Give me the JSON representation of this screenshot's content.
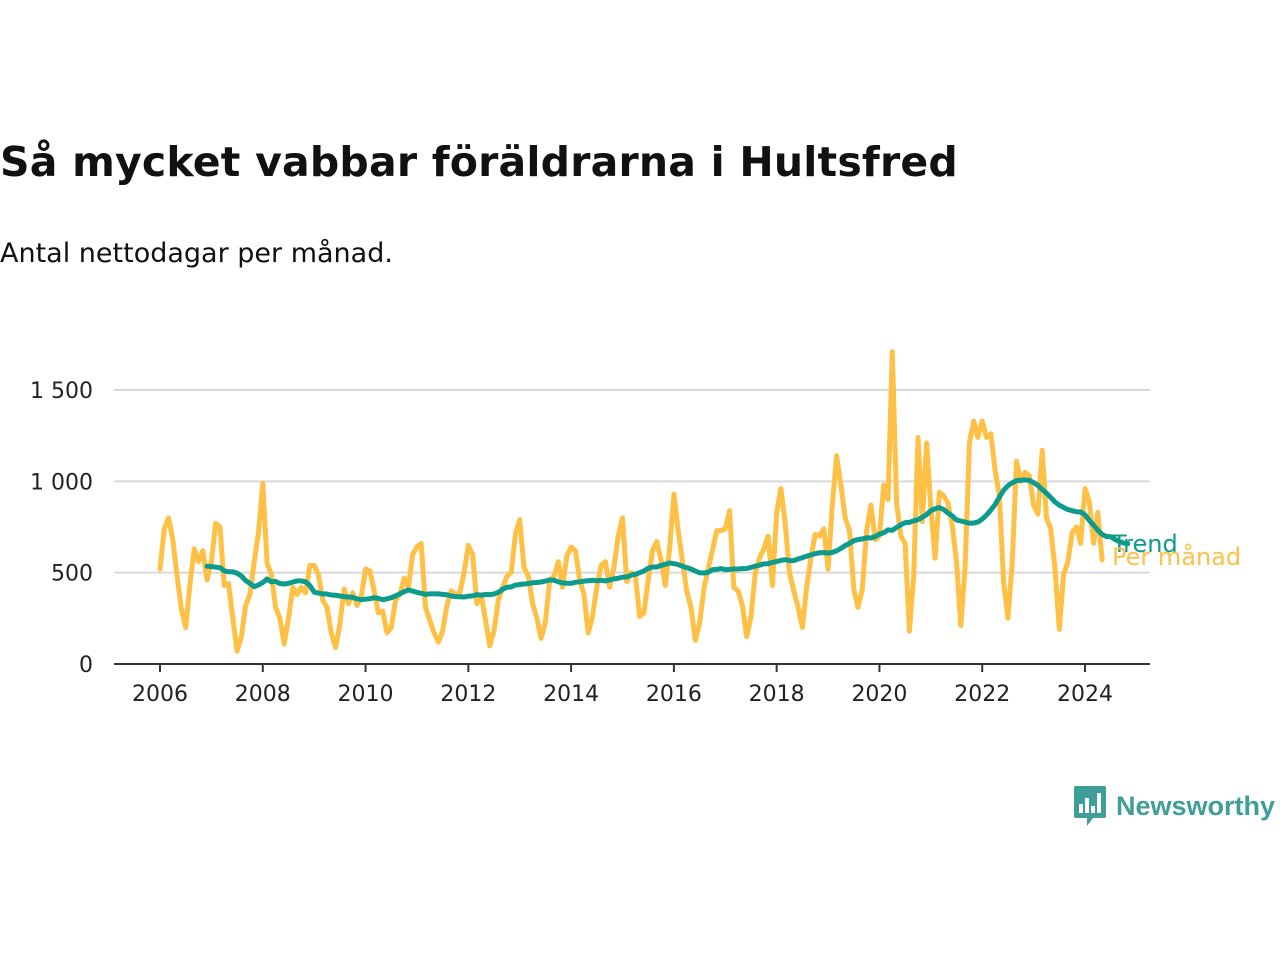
{
  "title": "Så mycket vabbar föräldrarna i Hultsfred",
  "subtitle": "Antal nettodagar per månad.",
  "brand": {
    "name": "Newsworthy",
    "logo_icon": "bar-chart-speech-bubble-icon"
  },
  "colors": {
    "monthly": "#fec045",
    "trend": "#0d9b8d",
    "grid": "#d9d9d9",
    "axis": "#333333",
    "brand": "#3f9e97"
  },
  "chart_data": {
    "type": "line",
    "x_ticks": [
      "2006",
      "2008",
      "2010",
      "2012",
      "2014",
      "2016",
      "2018",
      "2020",
      "2022",
      "2024"
    ],
    "y_ticks": [
      "0",
      "500",
      "1 000",
      "1 500"
    ],
    "ylim": [
      0,
      1700
    ],
    "grid": "horizontal",
    "series": [
      {
        "name": "Per månad",
        "start": "2006-01",
        "values": [
          520,
          740,
          800,
          680,
          480,
          300,
          200,
          440,
          630,
          560,
          620,
          460,
          560,
          770,
          750,
          430,
          440,
          250,
          70,
          150,
          320,
          380,
          560,
          720,
          990,
          550,
          490,
          310,
          250,
          110,
          250,
          420,
          380,
          420,
          390,
          540,
          540,
          490,
          350,
          310,
          170,
          90,
          220,
          410,
          330,
          390,
          320,
          370,
          520,
          510,
          400,
          280,
          290,
          170,
          200,
          350,
          380,
          470,
          420,
          600,
          640,
          660,
          310,
          240,
          170,
          120,
          180,
          320,
          400,
          380,
          390,
          500,
          650,
          600,
          330,
          380,
          240,
          100,
          180,
          350,
          420,
          480,
          500,
          710,
          790,
          530,
          480,
          330,
          250,
          140,
          230,
          460,
          480,
          560,
          420,
          590,
          640,
          620,
          460,
          380,
          170,
          260,
          420,
          540,
          560,
          420,
          530,
          700,
          800,
          450,
          500,
          490,
          260,
          280,
          460,
          620,
          670,
          570,
          430,
          630,
          930,
          730,
          560,
          400,
          310,
          130,
          220,
          410,
          520,
          620,
          730,
          730,
          740,
          840,
          420,
          400,
          320,
          150,
          260,
          500,
          580,
          630,
          700,
          430,
          830,
          960,
          770,
          500,
          400,
          310,
          200,
          420,
          580,
          710,
          700,
          740,
          520,
          870,
          1140,
          980,
          800,
          730,
          410,
          310,
          410,
          730,
          870,
          680,
          700,
          980,
          900,
          1710,
          880,
          700,
          660,
          180,
          480,
          1240,
          780,
          1210,
          860,
          580,
          940,
          920,
          880,
          760,
          560,
          210,
          530,
          1210,
          1330,
          1240,
          1330,
          1240,
          1260,
          1060,
          920,
          450,
          250,
          550,
          1110,
          1000,
          1050,
          1030,
          870,
          820,
          1170,
          800,
          740,
          520,
          190,
          490,
          560,
          720,
          750,
          660,
          960,
          890,
          660,
          830,
          570
        ]
      },
      {
        "name": "Trend",
        "start": "2006-12",
        "values": [
          535,
          534,
          530,
          527,
          510,
          505,
          504,
          497,
          482,
          457,
          441,
          423,
          433,
          446,
          466,
          450,
          452,
          440,
          438,
          441,
          449,
          455,
          455,
          450,
          430,
          393,
          388,
          384,
          383,
          378,
          376,
          372,
          369,
          367,
          365,
          357,
          352,
          355,
          357,
          363,
          359,
          352,
          357,
          363,
          372,
          384,
          396,
          405,
          399,
          392,
          387,
          381,
          384,
          384,
          384,
          381,
          379,
          372,
          369,
          368,
          367,
          371,
          373,
          380,
          376,
          381,
          380,
          383,
          392,
          409,
          420,
          422,
          432,
          435,
          438,
          440,
          445,
          446,
          449,
          454,
          460,
          458,
          450,
          444,
          442,
          442,
          447,
          450,
          454,
          456,
          458,
          456,
          458,
          455,
          461,
          466,
          469,
          475,
          477,
          486,
          491,
          500,
          509,
          524,
          531,
          531,
          539,
          546,
          553,
          549,
          544,
          535,
          527,
          520,
          509,
          499,
          498,
          502,
          516,
          518,
          522,
          516,
          518,
          520,
          520,
          522,
          523,
          529,
          536,
          541,
          548,
          549,
          556,
          561,
          567,
          571,
          566,
          566,
          575,
          582,
          590,
          597,
          604,
          609,
          610,
          607,
          611,
          619,
          633,
          648,
          660,
          675,
          681,
          685,
          691,
          690,
          698,
          711,
          719,
          734,
          732,
          748,
          762,
          774,
          775,
          784,
          790,
          803,
          818,
          839,
          850,
          856,
          846,
          826,
          811,
          789,
          783,
          777,
          771,
          772,
          777,
          793,
          815,
          843,
          873,
          914,
          951,
          976,
          992,
          1004,
          1006,
          1008,
          1005,
          993,
          978,
          955,
          935,
          912,
          887,
          870,
          857,
          845,
          839,
          834,
          832,
          817,
          786,
          760,
          732,
          710,
          698,
          697,
          682,
          670,
          663,
          658
        ]
      }
    ]
  }
}
